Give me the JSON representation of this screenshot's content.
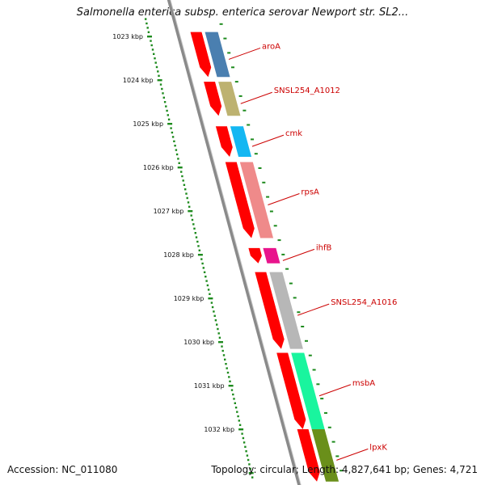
{
  "title": "Salmonella enterica subsp. enterica serovar Newport str. SL2...",
  "footer": {
    "accession": "Accession: NC_011080",
    "topology": "Topology: circular; Length: 4,827,641 bp; Genes: 4,721"
  },
  "scale_ticks": [
    "1023 kbp",
    "1024 kbp",
    "1025 kbp",
    "1026 kbp",
    "1027 kbp",
    "1028 kbp",
    "1029 kbp",
    "1030 kbp",
    "1031 kbp",
    "1032 kbp"
  ],
  "genes": [
    {
      "name": "aroA",
      "start_kbp": 1022.9,
      "end_kbp": 1023.93,
      "color": "#4a7fb0"
    },
    {
      "name": "SNSL254_A1012",
      "start_kbp": 1024.04,
      "end_kbp": 1024.82,
      "color": "#bdb270"
    },
    {
      "name": "cmk",
      "start_kbp": 1025.06,
      "end_kbp": 1025.76,
      "color": "#14b7f2"
    },
    {
      "name": "rpsA",
      "start_kbp": 1025.88,
      "end_kbp": 1027.62,
      "color": "#ef8a8a"
    },
    {
      "name": "ihfB",
      "start_kbp": 1027.85,
      "end_kbp": 1028.2,
      "color": "#e8148c"
    },
    {
      "name": "SNSL254_A1016",
      "start_kbp": 1028.4,
      "end_kbp": 1030.16,
      "color": "#b7b7b7"
    },
    {
      "name": "msbA",
      "start_kbp": 1030.25,
      "end_kbp": 1032.0,
      "color": "#19f59e"
    },
    {
      "name": "lpxK",
      "start_kbp": 1032.0,
      "end_kbp": 1033.2,
      "color": "#6a8f1a"
    }
  ],
  "colors": {
    "cds_arrow": "#ff0000",
    "scale_dots": "#1d8a1d",
    "label_text": "#cc0000",
    "backbone": "#888888"
  }
}
